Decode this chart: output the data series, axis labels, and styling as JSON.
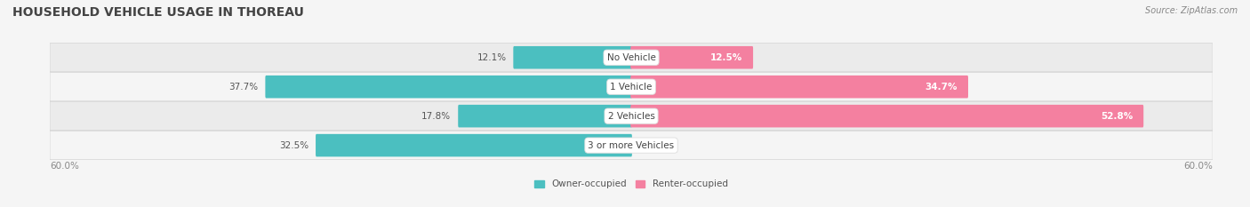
{
  "title": "HOUSEHOLD VEHICLE USAGE IN THOREAU",
  "source": "Source: ZipAtlas.com",
  "categories": [
    "No Vehicle",
    "1 Vehicle",
    "2 Vehicles",
    "3 or more Vehicles"
  ],
  "owner_values": [
    12.1,
    37.7,
    17.8,
    32.5
  ],
  "renter_values": [
    12.5,
    34.7,
    52.8,
    0.0
  ],
  "owner_color": "#4BBFC0",
  "renter_color": "#F480A0",
  "axis_max": 60.0,
  "axis_label_left": "60.0%",
  "axis_label_right": "60.0%",
  "legend_owner": "Owner-occupied",
  "legend_renter": "Renter-occupied",
  "bg_color": "#f5f5f5",
  "row_bg_even": "#ebebeb",
  "row_bg_odd": "#f5f5f5",
  "title_fontsize": 10,
  "source_fontsize": 7,
  "label_fontsize": 7.5,
  "category_fontsize": 7.5,
  "value_color_dark": "#555555",
  "value_color_light": "white"
}
